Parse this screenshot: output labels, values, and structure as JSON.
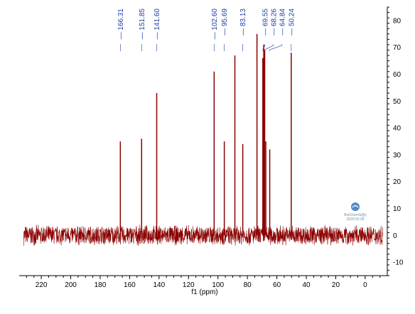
{
  "chart_data": {
    "type": "line",
    "xlabel": "f1 (ppm)",
    "ylabel": "",
    "x_reversed": true,
    "xlim": [
      235,
      -15
    ],
    "ylim": [
      -15,
      85
    ],
    "x_ticks": [
      "220",
      "200",
      "180",
      "160",
      "140",
      "120",
      "100",
      "80",
      "60",
      "40",
      "20",
      "0"
    ],
    "x_tick_values": [
      220,
      200,
      180,
      160,
      140,
      120,
      100,
      80,
      60,
      40,
      20,
      0
    ],
    "y_ticks": [
      "-10",
      "0",
      "10",
      "20",
      "30",
      "40",
      "50",
      "60",
      "70",
      "80"
    ],
    "y_tick_values": [
      -10,
      0,
      10,
      20,
      30,
      40,
      50,
      60,
      70,
      80
    ],
    "series": [
      {
        "color": "#8b0000",
        "noise_amplitude": 4,
        "peaks": [
          {
            "x": 166.31,
            "y": 35
          },
          {
            "x": 151.85,
            "y": 36
          },
          {
            "x": 141.6,
            "y": 53
          },
          {
            "x": 102.6,
            "y": 61
          },
          {
            "x": 95.69,
            "y": 35
          },
          {
            "x": 88.5,
            "y": 67
          },
          {
            "x": 83.13,
            "y": 34
          },
          {
            "x": 73.5,
            "y": 75
          },
          {
            "x": 69.55,
            "y": 66
          },
          {
            "x": 68.9,
            "y": 71
          },
          {
            "x": 68.26,
            "y": 69
          },
          {
            "x": 67.5,
            "y": 35
          },
          {
            "x": 64.84,
            "y": 32
          },
          {
            "x": 50.24,
            "y": 68
          }
        ]
      }
    ],
    "peak_labels": [
      {
        "text": "166.31",
        "x": 166.31
      },
      {
        "text": "151.85",
        "x": 151.85
      },
      {
        "text": "141.60",
        "x": 141.6
      },
      {
        "text": "102.60",
        "x": 102.6
      },
      {
        "text": "95.69",
        "x": 95.69
      },
      {
        "text": "83.13",
        "x": 83.13
      },
      {
        "text": "69.55",
        "x": 69.55
      },
      {
        "text": "68.26",
        "x": 68.26
      },
      {
        "text": "64.84",
        "x": 64.84
      },
      {
        "text": "50.24",
        "x": 50.24
      }
    ],
    "grid": false
  },
  "watermark": {
    "line1": "BioChemS@y",
    "line2": "2020.03.05",
    "icon": "watermark-logo-icon",
    "color": "#4f89c6"
  }
}
